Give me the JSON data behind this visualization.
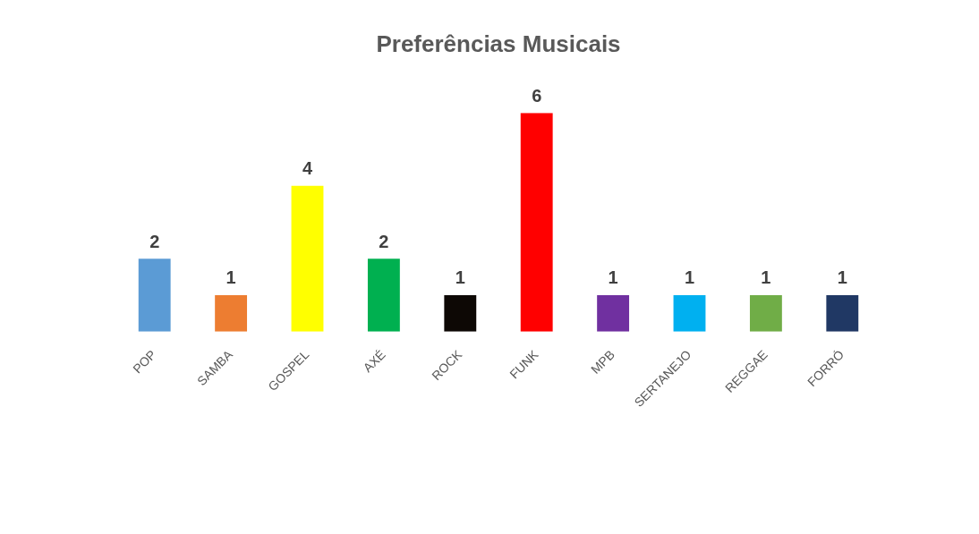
{
  "chart_data": {
    "type": "bar",
    "title": "Preferências Musicais",
    "categories": [
      "POP",
      "SAMBA",
      "GOSPEL",
      "AXÉ",
      "ROCK",
      "FUNK",
      "MPB",
      "SERTANEJO",
      "REGGAE",
      "FORRÓ"
    ],
    "values": [
      2,
      1,
      4,
      2,
      1,
      6,
      1,
      1,
      1,
      1
    ],
    "colors": [
      "#5b9bd5",
      "#ed7d31",
      "#ffff00",
      "#00b050",
      "#0d0805",
      "#ff0000",
      "#7030a0",
      "#00b0f0",
      "#70ad47",
      "#203864"
    ],
    "data_labels": true,
    "grid": false,
    "legend": false
  }
}
